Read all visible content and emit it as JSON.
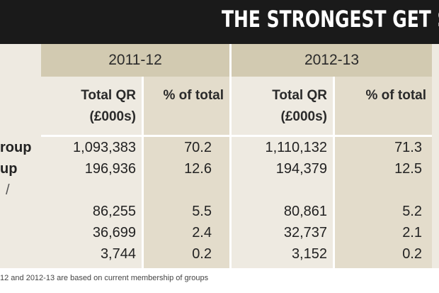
{
  "title": "THE STRONGEST GET STR",
  "years": [
    "2011-12",
    "2012-13"
  ],
  "headers": {
    "total": "Total QR",
    "total_unit": "(£000s)",
    "pct": "% of total"
  },
  "rows": [
    {
      "label": "roup",
      "v1": "1,093,383",
      "p1": "70.2",
      "v2": "1,110,132",
      "p2": "71.3"
    },
    {
      "label": "up",
      "v1": "196,936",
      "p1": "12.6",
      "v2": "194,379",
      "p2": "12.5"
    },
    {
      "label": "",
      "v1": "86,255",
      "p1": "5.5",
      "v2": "80,861",
      "p2": "5.2"
    },
    {
      "label": "",
      "v1": "36,699",
      "p1": "2.4",
      "v2": "32,737",
      "p2": "2.1"
    },
    {
      "label": "",
      "v1": "3,744",
      "p1": "0.2",
      "v2": "3,152",
      "p2": "0.2"
    }
  ],
  "stray_mark": "/",
  "footnote": "12 and 2012-13 are based on current membership of groups"
}
